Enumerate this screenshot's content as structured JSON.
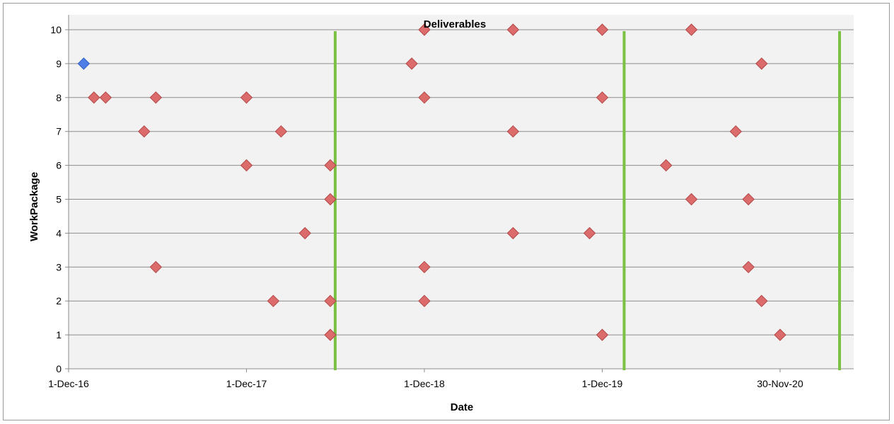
{
  "chart_data": {
    "type": "scatter",
    "title": "Deliverables",
    "xlabel": "Date",
    "ylabel": "WorkPackage",
    "x_ticks": [
      "1-Dec-16",
      "1-Dec-17",
      "1-Dec-18",
      "1-Dec-19",
      "30-Nov-20"
    ],
    "xlim": [
      "2016-12-01",
      "2021-04-30"
    ],
    "ylim": [
      0,
      10
    ],
    "y_ticks": [
      0,
      1,
      2,
      3,
      4,
      5,
      6,
      7,
      8,
      9,
      10
    ],
    "grid": true,
    "legend": "none",
    "colors": {
      "plot_background": "#f2f2f2",
      "gridline": "#8c8c8c",
      "marker": "#dc6c6c",
      "marker_highlight": "#4f7fe6",
      "milestone_line": "#7ac143"
    },
    "milestone_lines": [
      "2018-06-01",
      "2020-01-15",
      "2021-04-01"
    ],
    "points": [
      {
        "x": "2017-01-01",
        "y": 9,
        "highlight": true
      },
      {
        "x": "2017-01-22",
        "y": 8
      },
      {
        "x": "2017-02-15",
        "y": 8
      },
      {
        "x": "2017-05-29",
        "y": 8
      },
      {
        "x": "2017-12-01",
        "y": 8
      },
      {
        "x": "2018-12-01",
        "y": 8
      },
      {
        "x": "2019-12-01",
        "y": 8
      },
      {
        "x": "2018-12-01",
        "y": 10
      },
      {
        "x": "2019-06-01",
        "y": 10
      },
      {
        "x": "2019-12-01",
        "y": 10
      },
      {
        "x": "2020-06-01",
        "y": 10
      },
      {
        "x": "2018-11-05",
        "y": 9
      },
      {
        "x": "2020-10-23",
        "y": 9
      },
      {
        "x": "2017-05-05",
        "y": 7
      },
      {
        "x": "2018-02-10",
        "y": 7
      },
      {
        "x": "2019-06-01",
        "y": 7
      },
      {
        "x": "2020-08-31",
        "y": 7
      },
      {
        "x": "2017-12-01",
        "y": 6
      },
      {
        "x": "2018-05-22",
        "y": 6
      },
      {
        "x": "2020-04-10",
        "y": 6
      },
      {
        "x": "2018-05-22",
        "y": 5
      },
      {
        "x": "2020-06-01",
        "y": 5
      },
      {
        "x": "2020-09-26",
        "y": 5
      },
      {
        "x": "2018-03-31",
        "y": 4
      },
      {
        "x": "2019-06-01",
        "y": 4
      },
      {
        "x": "2019-11-05",
        "y": 4
      },
      {
        "x": "2017-05-29",
        "y": 3
      },
      {
        "x": "2018-12-01",
        "y": 3
      },
      {
        "x": "2020-09-26",
        "y": 3
      },
      {
        "x": "2018-01-25",
        "y": 2
      },
      {
        "x": "2018-05-22",
        "y": 2
      },
      {
        "x": "2018-12-01",
        "y": 2
      },
      {
        "x": "2020-10-23",
        "y": 2
      },
      {
        "x": "2018-05-22",
        "y": 1
      },
      {
        "x": "2019-12-01",
        "y": 1
      },
      {
        "x": "2020-11-30",
        "y": 1
      }
    ]
  }
}
